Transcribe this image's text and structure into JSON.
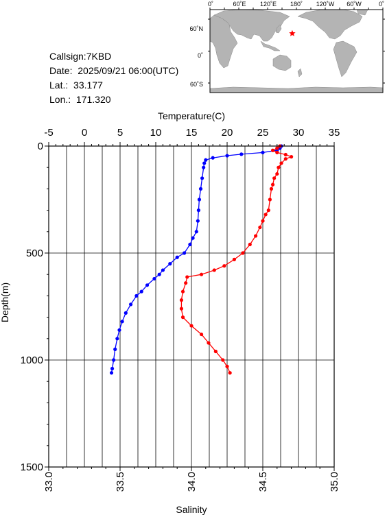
{
  "info": {
    "callsign": "Callsign:7KBD",
    "date": "Date:  2025/09/21 06:00(UTC)",
    "lat_label": "Lat.:",
    "lat_value": "33.177",
    "lon_label": "Lon.:",
    "lon_value": "171.320"
  },
  "map": {
    "top_labels": [
      "0˚",
      "60˚E",
      "120˚E",
      "180˚",
      "120˚W",
      "60˚W",
      "0˚"
    ],
    "lat_labels": [
      "60˚N",
      "0˚",
      "60˚S"
    ],
    "ocean_color": "#ffffff",
    "land_color": "#b4b4b4",
    "marker": {
      "symbol": "star",
      "color": "#ff0000",
      "lat": 33.177,
      "lon": 171.32
    }
  },
  "chart_data": {
    "type": "line",
    "title": "",
    "x_top_label": "Temperature(C)",
    "x_bottom_label": "Salinity",
    "y_label": "Depth(m)",
    "temperature_ticks": [
      "-5",
      "0",
      "5",
      "10",
      "15",
      "20",
      "25",
      "30",
      "35"
    ],
    "salinity_ticks": [
      "33.0",
      "33.5",
      "34.0",
      "34.5",
      "35.0"
    ],
    "depth_ticks": [
      "0",
      "500",
      "1000",
      "1500"
    ],
    "xlim_temperature": [
      -5,
      35
    ],
    "xlim_salinity": [
      33.0,
      35.0
    ],
    "ylim_depth": [
      1500,
      0
    ],
    "grid": true,
    "series": [
      {
        "variable": "temperature",
        "color": "#0000ff",
        "points": [
          {
            "depth": 0,
            "value": 27.6
          },
          {
            "depth": 10,
            "value": 27.4
          },
          {
            "depth": 20,
            "value": 27.0
          },
          {
            "depth": 30,
            "value": 25.0
          },
          {
            "depth": 38,
            "value": 22.0
          },
          {
            "depth": 45,
            "value": 20.0
          },
          {
            "depth": 55,
            "value": 18.0
          },
          {
            "depth": 65,
            "value": 17.0
          },
          {
            "depth": 80,
            "value": 16.8
          },
          {
            "depth": 100,
            "value": 16.7
          },
          {
            "depth": 150,
            "value": 16.5
          },
          {
            "depth": 200,
            "value": 16.3
          },
          {
            "depth": 250,
            "value": 16.1
          },
          {
            "depth": 300,
            "value": 16.0
          },
          {
            "depth": 350,
            "value": 15.9
          },
          {
            "depth": 400,
            "value": 15.7
          },
          {
            "depth": 430,
            "value": 15.2
          },
          {
            "depth": 460,
            "value": 14.8
          },
          {
            "depth": 500,
            "value": 14.0
          },
          {
            "depth": 520,
            "value": 13.0
          },
          {
            "depth": 550,
            "value": 12.0
          },
          {
            "depth": 580,
            "value": 11.0
          },
          {
            "depth": 600,
            "value": 10.5
          },
          {
            "depth": 620,
            "value": 9.8
          },
          {
            "depth": 650,
            "value": 8.8
          },
          {
            "depth": 680,
            "value": 8.0
          },
          {
            "depth": 700,
            "value": 7.3
          },
          {
            "depth": 740,
            "value": 6.5
          },
          {
            "depth": 780,
            "value": 5.8
          },
          {
            "depth": 820,
            "value": 5.3
          },
          {
            "depth": 860,
            "value": 4.9
          },
          {
            "depth": 900,
            "value": 4.6
          },
          {
            "depth": 950,
            "value": 4.3
          },
          {
            "depth": 1000,
            "value": 4.1
          },
          {
            "depth": 1040,
            "value": 3.9
          },
          {
            "depth": 1060,
            "value": 3.8
          }
        ]
      },
      {
        "variable": "salinity",
        "color": "#ff0000",
        "points": [
          {
            "depth": 0,
            "value": 34.62
          },
          {
            "depth": 10,
            "value": 34.6
          },
          {
            "depth": 20,
            "value": 34.57
          },
          {
            "depth": 30,
            "value": 34.6
          },
          {
            "depth": 40,
            "value": 34.66
          },
          {
            "depth": 50,
            "value": 34.7
          },
          {
            "depth": 60,
            "value": 34.66
          },
          {
            "depth": 80,
            "value": 34.63
          },
          {
            "depth": 100,
            "value": 34.61
          },
          {
            "depth": 130,
            "value": 34.6
          },
          {
            "depth": 150,
            "value": 34.58
          },
          {
            "depth": 180,
            "value": 34.57
          },
          {
            "depth": 200,
            "value": 34.56
          },
          {
            "depth": 250,
            "value": 34.55
          },
          {
            "depth": 300,
            "value": 34.54
          },
          {
            "depth": 320,
            "value": 34.52
          },
          {
            "depth": 350,
            "value": 34.5
          },
          {
            "depth": 380,
            "value": 34.48
          },
          {
            "depth": 420,
            "value": 34.45
          },
          {
            "depth": 460,
            "value": 34.41
          },
          {
            "depth": 500,
            "value": 34.36
          },
          {
            "depth": 530,
            "value": 34.3
          },
          {
            "depth": 560,
            "value": 34.23
          },
          {
            "depth": 580,
            "value": 34.16
          },
          {
            "depth": 600,
            "value": 34.07
          },
          {
            "depth": 612,
            "value": 33.97
          },
          {
            "depth": 640,
            "value": 33.96
          },
          {
            "depth": 680,
            "value": 33.94
          },
          {
            "depth": 720,
            "value": 33.93
          },
          {
            "depth": 760,
            "value": 33.93
          },
          {
            "depth": 800,
            "value": 33.94
          },
          {
            "depth": 840,
            "value": 34.0
          },
          {
            "depth": 880,
            "value": 34.07
          },
          {
            "depth": 920,
            "value": 34.12
          },
          {
            "depth": 960,
            "value": 34.17
          },
          {
            "depth": 1000,
            "value": 34.22
          },
          {
            "depth": 1030,
            "value": 34.25
          },
          {
            "depth": 1060,
            "value": 34.27
          }
        ]
      }
    ]
  }
}
